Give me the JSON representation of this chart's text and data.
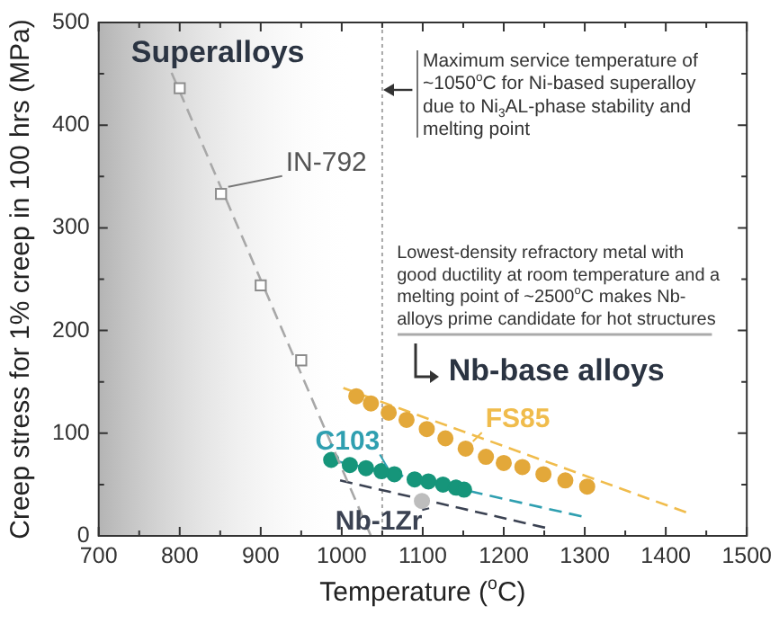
{
  "chart_data": {
    "type": "scatter",
    "xlabel": "Temperature ($^{o}$C)",
    "ylabel": "Creep stress for 1% creep in 100 hrs (MPa)",
    "xlim": [
      700,
      1500
    ],
    "xticks": [
      700,
      {
        "value": 750,
        "label": null
      },
      800,
      {
        "value": 850,
        "label": null
      },
      900,
      {
        "value": 950,
        "label": null
      },
      1000,
      {
        "value": 1050,
        "label": null
      },
      1100,
      {
        "value": 1150,
        "label": null
      },
      1200,
      {
        "value": 1250,
        "label": null
      },
      1300,
      {
        "value": 1350,
        "label": null
      },
      1400,
      {
        "value": 1450,
        "label": null
      },
      1500
    ],
    "ylim": [
      0,
      500
    ],
    "yticks": [
      0,
      {
        "value": 50,
        "label": null
      },
      100,
      {
        "value": 150,
        "label": null
      },
      200,
      {
        "value": 250,
        "label": null
      },
      300,
      {
        "value": 350,
        "label": null
      },
      400,
      {
        "value": 450,
        "label": null
      },
      500
    ],
    "grid": false,
    "legend": false,
    "series": [
      {
        "name": "IN-792",
        "type": "scatter",
        "marker": "square",
        "color": "#8c8c8c",
        "x": [
          800,
          851,
          900,
          950
        ],
        "values": [
          436,
          333,
          244,
          171
        ]
      },
      {
        "type": "line",
        "line_style": "dashed",
        "color": "#a8a8a8",
        "x": [
          790,
          1036
        ],
        "values": [
          451,
          0
        ]
      },
      {
        "name": "FS85",
        "type": "scatter",
        "marker": "circle",
        "color": "#e3a83a",
        "x": [
          1018,
          1036,
          1058,
          1080,
          1105,
          1128,
          1153,
          1178,
          1200,
          1223,
          1249,
          1276,
          1303
        ],
        "values": [
          136,
          129,
          120,
          113,
          104,
          95,
          85,
          77,
          71,
          67,
          60,
          54,
          48
        ]
      },
      {
        "type": "line",
        "line_style": "dashed",
        "color": "#f0bc4c",
        "x": [
          1002,
          1425
        ],
        "values": [
          144,
          23
        ]
      },
      {
        "name": "C103",
        "type": "scatter",
        "marker": "circle",
        "color": "#16957a",
        "x": [
          987,
          1010,
          1030,
          1049,
          1065,
          1090,
          1107,
          1125,
          1141,
          1151
        ],
        "values": [
          74,
          69,
          66,
          63,
          60,
          55,
          53,
          50,
          47,
          45
        ]
      },
      {
        "type": "line",
        "line_style": "dashed",
        "color": "#2f9fb0",
        "x": [
          987,
          1296
        ],
        "values": [
          74,
          19
        ]
      },
      {
        "name": "Nb-1Zr",
        "type": "scatter",
        "marker": "circle",
        "color": "#bdbdbd",
        "x": [
          1099
        ],
        "values": [
          34
        ]
      },
      {
        "type": "line",
        "line_style": "dashed",
        "color": "#3b4252",
        "x": [
          998,
          1251
        ],
        "values": [
          54,
          8
        ]
      }
    ],
    "ref_lines": [
      {
        "axis": "x",
        "value": 1050,
        "line_style": "dotted",
        "color": "#a8a8a8"
      }
    ],
    "bands": [
      {
        "axis": "x",
        "from": 700,
        "to": 1050,
        "color": "#b4b4b4"
      }
    ],
    "annotations": [
      "Superalloys",
      "Maximum service temperature of ~1050$^{o}$C for Ni-based superalloy due to Ni$_{3}$AL-phase stability and melting point",
      "Lowest-density refractory metal with good ductility at room temperature and a melting point of ~2500$^{o}$C makes Nb-alloys prime candidate for hot structures",
      "Nb-base alloys"
    ]
  }
}
